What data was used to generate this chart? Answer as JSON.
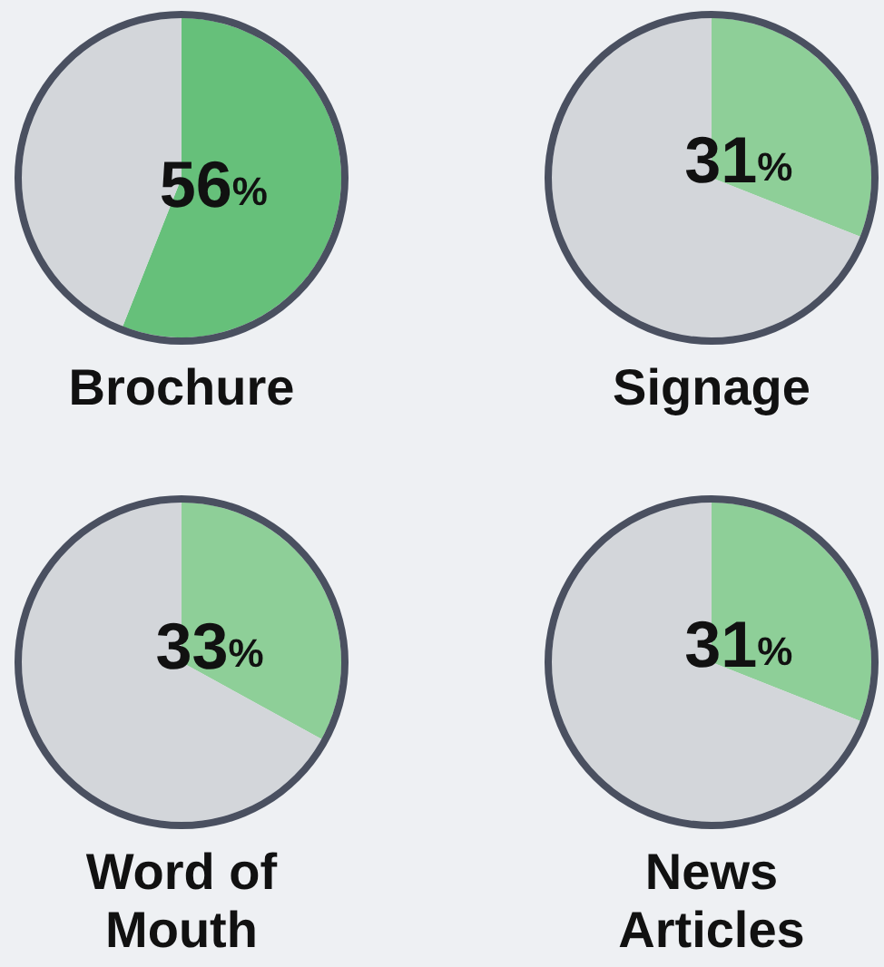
{
  "chart_data": [
    {
      "type": "pie",
      "title": "Brochure",
      "categories": [
        null,
        null
      ],
      "values": [
        56,
        44
      ],
      "colors": [
        "#66c07a",
        "#d3d6da"
      ],
      "value_labels": [
        "56%",
        null
      ]
    },
    {
      "type": "pie",
      "title": "Signage",
      "categories": [
        null,
        null
      ],
      "values": [
        31,
        69
      ],
      "colors": [
        "#8ecf98",
        "#d3d6da"
      ],
      "value_labels": [
        "31%",
        null
      ]
    },
    {
      "type": "pie",
      "title": "Word of Mouth",
      "categories": [
        null,
        null
      ],
      "values": [
        33,
        67
      ],
      "colors": [
        "#8ecf98",
        "#d3d6da"
      ],
      "value_labels": [
        "33%",
        null
      ]
    },
    {
      "type": "pie",
      "title": "News Articles",
      "categories": [
        null,
        null
      ],
      "values": [
        31,
        69
      ],
      "colors": [
        "#8ecf98",
        "#d3d6da"
      ],
      "value_labels": [
        "31%",
        null
      ]
    }
  ]
}
